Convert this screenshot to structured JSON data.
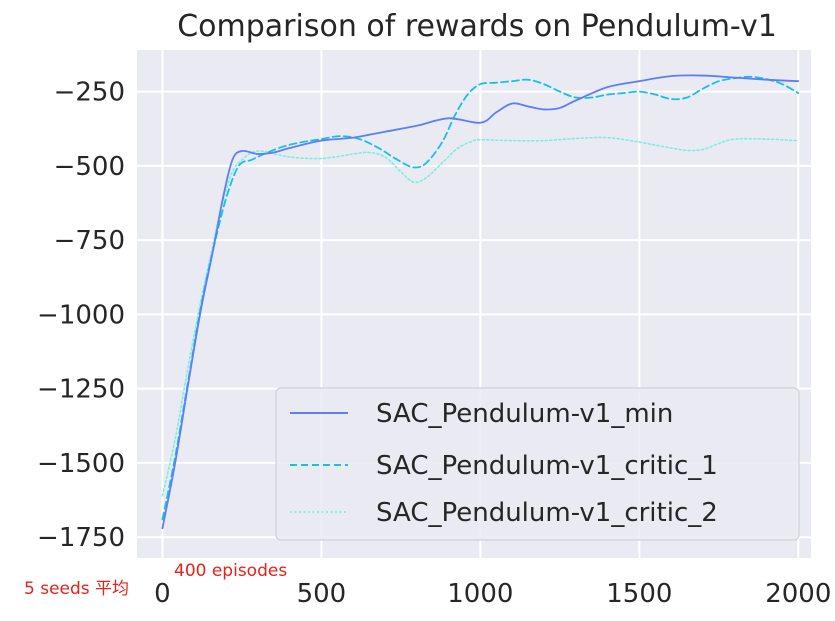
{
  "chart_data": {
    "type": "line",
    "title": "Comparison of rewards on Pendulum-v1",
    "xlabel": "",
    "ylabel": "",
    "xlim": [
      -80,
      2040
    ],
    "ylim": [
      -1820,
      -110
    ],
    "xticks": [
      0,
      500,
      1000,
      1500,
      2000
    ],
    "xtick_labels": [
      "0",
      "500",
      "1000",
      "1500",
      "2000"
    ],
    "yticks": [
      -250,
      -500,
      -750,
      -1000,
      -1250,
      -1500,
      -1750
    ],
    "ytick_labels": [
      "−250",
      "−500",
      "−750",
      "−1000",
      "−1250",
      "−1500",
      "−1750"
    ],
    "grid": true,
    "legend_position": "lower-right",
    "series": [
      {
        "name": "SAC_Pendulum-v1_min",
        "color": "#5b7ff6",
        "style": "solid",
        "x": [
          0,
          40,
          80,
          120,
          160,
          190,
          220,
          250,
          300,
          350,
          400,
          500,
          600,
          700,
          800,
          900,
          1000,
          1050,
          1100,
          1150,
          1200,
          1250,
          1300,
          1400,
          1500,
          1600,
          1700,
          1800,
          1900,
          2000
        ],
        "y": [
          -1720,
          -1500,
          -1240,
          -990,
          -780,
          -610,
          -480,
          -450,
          -460,
          -455,
          -440,
          -415,
          -405,
          -385,
          -365,
          -340,
          -355,
          -320,
          -290,
          -300,
          -310,
          -305,
          -280,
          -235,
          -215,
          -198,
          -196,
          -203,
          -210,
          -215
        ]
      },
      {
        "name": "SAC_Pendulum-v1_critic_1",
        "color": "#17c0e8",
        "style": "dashed",
        "x": [
          0,
          40,
          80,
          120,
          160,
          200,
          240,
          280,
          320,
          380,
          440,
          500,
          560,
          620,
          680,
          740,
          790,
          830,
          880,
          920,
          960,
          1000,
          1050,
          1100,
          1150,
          1200,
          1250,
          1300,
          1350,
          1400,
          1450,
          1500,
          1550,
          1600,
          1650,
          1700,
          1750,
          1800,
          1850,
          1900,
          1950,
          2000
        ],
        "y": [
          -1690,
          -1480,
          -1230,
          -980,
          -780,
          -610,
          -500,
          -480,
          -460,
          -435,
          -420,
          -410,
          -400,
          -410,
          -440,
          -480,
          -505,
          -490,
          -420,
          -330,
          -260,
          -225,
          -220,
          -215,
          -210,
          -225,
          -250,
          -270,
          -270,
          -260,
          -255,
          -250,
          -260,
          -275,
          -270,
          -240,
          -215,
          -205,
          -200,
          -208,
          -225,
          -255
        ]
      },
      {
        "name": "SAC_Pendulum-v1_critic_2",
        "color": "#7ceee0",
        "style": "dotted",
        "x": [
          0,
          40,
          80,
          120,
          160,
          190,
          220,
          250,
          300,
          400,
          500,
          600,
          650,
          700,
          750,
          790,
          830,
          880,
          930,
          980,
          1000,
          1100,
          1200,
          1300,
          1400,
          1500,
          1550,
          1600,
          1650,
          1700,
          1750,
          1800,
          1900,
          2000
        ],
        "y": [
          -1610,
          -1420,
          -1180,
          -960,
          -760,
          -620,
          -520,
          -480,
          -450,
          -470,
          -475,
          -460,
          -455,
          -470,
          -520,
          -555,
          -540,
          -490,
          -440,
          -415,
          -412,
          -415,
          -415,
          -408,
          -405,
          -420,
          -430,
          -440,
          -448,
          -445,
          -425,
          -410,
          -410,
          -415
        ]
      }
    ]
  },
  "annotations": {
    "seeds_note": "5 seeds 平均",
    "episodes_note": "400 episodes"
  }
}
